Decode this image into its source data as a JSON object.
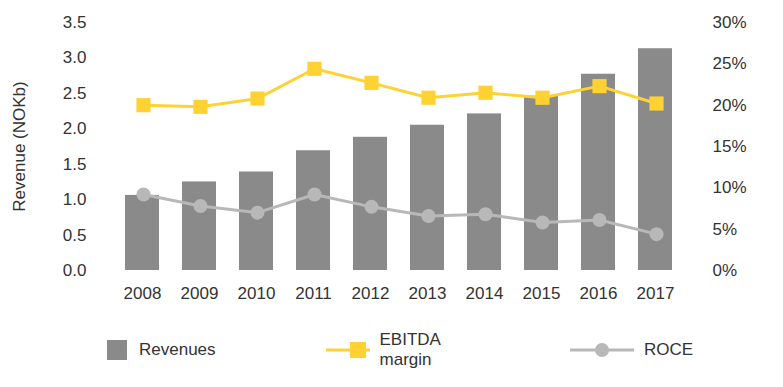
{
  "chart_data": {
    "type": "bar",
    "categories": [
      "2008",
      "2009",
      "2010",
      "2011",
      "2012",
      "2013",
      "2014",
      "2015",
      "2016",
      "2017"
    ],
    "series": [
      {
        "name": "Revenues",
        "type": "bar",
        "color": "#8a8a8a",
        "values": [
          1.06,
          1.25,
          1.39,
          1.69,
          1.88,
          2.05,
          2.21,
          2.46,
          2.77,
          3.13
        ]
      },
      {
        "name": "EBITDA margin",
        "type": "line",
        "axis": "y2",
        "color": "#ffd234",
        "marker": "square",
        "values": [
          20.0,
          19.8,
          20.8,
          24.4,
          22.7,
          20.9,
          21.5,
          20.9,
          22.3,
          20.2
        ]
      },
      {
        "name": "ROCE",
        "type": "line",
        "axis": "y2",
        "color": "#b8b8b8",
        "marker": "circle",
        "values": [
          9.2,
          7.8,
          7.0,
          9.2,
          7.7,
          6.6,
          6.8,
          5.8,
          6.1,
          4.4
        ]
      }
    ],
    "y_label": "Revenue (NOKb)",
    "ylim": [
      0,
      3.5
    ],
    "yticks": [
      {
        "value": 0,
        "label": "0.0"
      },
      0.5,
      {
        "value": 1,
        "label": "1.0"
      },
      1.5,
      {
        "value": 2,
        "label": "2.0"
      },
      2.5,
      {
        "value": 3,
        "label": "3.0"
      },
      3.5
    ],
    "y2lim": [
      0,
      30
    ],
    "y2ticks": [
      {
        "value": 0,
        "label": "0%"
      },
      {
        "value": 5,
        "label": "5%"
      },
      {
        "value": 10,
        "label": "10%"
      },
      {
        "value": 15,
        "label": "15%"
      },
      {
        "value": 20,
        "label": "20%"
      },
      {
        "value": 25,
        "label": "25%"
      },
      {
        "value": 30,
        "label": "30%"
      }
    ],
    "grid": false,
    "legend": "bottom"
  }
}
